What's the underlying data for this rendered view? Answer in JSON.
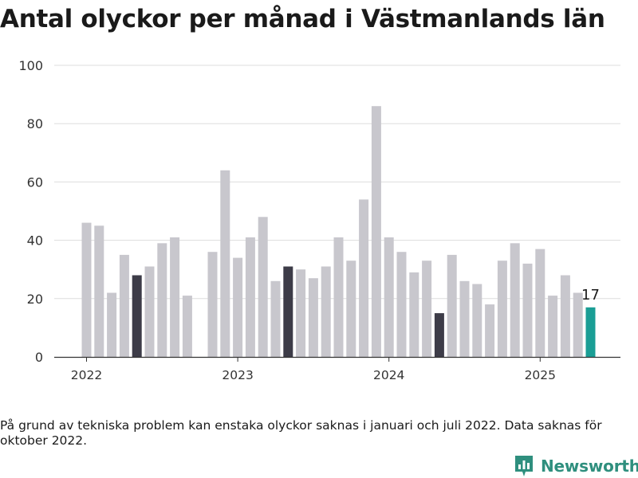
{
  "title": "Antal olyckor per månad i Västmanlands län",
  "footnote": "På grund av tekniska problem kan enstaka olyckor saknas i januari och juli 2022. Data saknas för oktober 2022.",
  "brand": {
    "name": "Newsworthy",
    "icon": "bar-chart-bubble-icon",
    "color": "#2f8f7e"
  },
  "colors": {
    "bar": "#c8c7cd",
    "highlight": "#3d3c48",
    "last": "#1a9e95",
    "grid": "#dddddd"
  },
  "chart_data": {
    "type": "bar",
    "title": "Antal olyckor per månad i Västmanlands län",
    "xlabel": "",
    "ylabel": "",
    "ylim": [
      0,
      100
    ],
    "y_ticks": [
      0,
      20,
      40,
      60,
      80,
      100
    ],
    "x_tick_labels": [
      "2022",
      "2023",
      "2024",
      "2025"
    ],
    "grid": true,
    "legend": "none",
    "categories": [
      "2022-01",
      "2022-02",
      "2022-03",
      "2022-04",
      "2022-05",
      "2022-06",
      "2022-07",
      "2022-08",
      "2022-09",
      "2022-10",
      "2022-11",
      "2022-12",
      "2023-01",
      "2023-02",
      "2023-03",
      "2023-04",
      "2023-05",
      "2023-06",
      "2023-07",
      "2023-08",
      "2023-09",
      "2023-10",
      "2023-11",
      "2023-12",
      "2024-01",
      "2024-02",
      "2024-03",
      "2024-04",
      "2024-05",
      "2024-06",
      "2024-07",
      "2024-08",
      "2024-09",
      "2024-10",
      "2024-11",
      "2024-12",
      "2025-01",
      "2025-02",
      "2025-03",
      "2025-04",
      "2025-05"
    ],
    "values": [
      46,
      45,
      22,
      35,
      28,
      31,
      39,
      41,
      21,
      null,
      36,
      64,
      34,
      41,
      48,
      26,
      31,
      30,
      27,
      31,
      41,
      33,
      54,
      86,
      41,
      36,
      29,
      33,
      15,
      35,
      26,
      25,
      18,
      33,
      39,
      32,
      37,
      21,
      28,
      22,
      17
    ],
    "highlighted": [
      "2022-05",
      "2023-05",
      "2024-05"
    ],
    "last_highlighted": "2025-05",
    "annotation": {
      "category": "2025-05",
      "text": "17"
    }
  }
}
